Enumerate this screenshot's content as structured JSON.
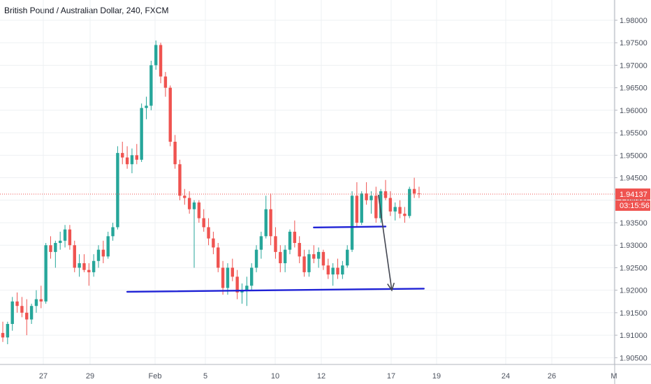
{
  "chart_data": {
    "type": "candlestick",
    "title": "British Pound / Australian Dollar, 240, FXCM",
    "ylim": [
      1.9035,
      1.9845
    ],
    "grid": true,
    "y_ticks": [
      "1.98000",
      "1.97500",
      "1.97000",
      "1.96500",
      "1.96000",
      "1.95500",
      "1.95000",
      "1.94500",
      "1.94000",
      "1.93500",
      "1.93000",
      "1.92500",
      "1.92000",
      "1.91500",
      "1.91000",
      "1.90500"
    ],
    "x_ticks": [
      "27",
      "29",
      "Feb",
      "5",
      "10",
      "12",
      "17",
      "19",
      "24",
      "26",
      "M"
    ],
    "last_price": "1.94137",
    "countdown": "03:15:56",
    "colors": {
      "up": "#26a69a",
      "down": "#ef5350",
      "trendline": "#1f22d6",
      "arrow": "#434651",
      "price_line": "#ef5350",
      "grid": "#eef0f3"
    },
    "candles": [
      [
        1.9105,
        1.913,
        1.9085,
        1.9095
      ],
      [
        1.9095,
        1.913,
        1.908,
        1.9125
      ],
      [
        1.9125,
        1.9185,
        1.911,
        1.9175
      ],
      [
        1.9175,
        1.9195,
        1.915,
        1.9165
      ],
      [
        1.9165,
        1.9185,
        1.914,
        1.915
      ],
      [
        1.915,
        1.918,
        1.91,
        1.9135
      ],
      [
        1.9135,
        1.917,
        1.9125,
        1.9165
      ],
      [
        1.9165,
        1.92,
        1.915,
        1.918
      ],
      [
        1.918,
        1.921,
        1.916,
        1.9175
      ],
      [
        1.9175,
        1.9305,
        1.917,
        1.93
      ],
      [
        1.93,
        1.932,
        1.927,
        1.9285
      ],
      [
        1.9285,
        1.931,
        1.925,
        1.9305
      ],
      [
        1.9305,
        1.933,
        1.929,
        1.931
      ],
      [
        1.931,
        1.9345,
        1.9295,
        1.9335
      ],
      [
        1.9335,
        1.9345,
        1.929,
        1.93
      ],
      [
        1.93,
        1.931,
        1.924,
        1.925
      ],
      [
        1.925,
        1.928,
        1.923,
        1.926
      ],
      [
        1.926,
        1.928,
        1.924,
        1.9245
      ],
      [
        1.9245,
        1.926,
        1.921,
        1.924
      ],
      [
        1.924,
        1.928,
        1.923,
        1.9265
      ],
      [
        1.9265,
        1.93,
        1.925,
        1.929
      ],
      [
        1.929,
        1.931,
        1.926,
        1.9275
      ],
      [
        1.9275,
        1.933,
        1.927,
        1.932
      ],
      [
        1.932,
        1.935,
        1.931,
        1.934
      ],
      [
        1.934,
        1.952,
        1.9335,
        1.9505
      ],
      [
        1.9505,
        1.953,
        1.948,
        1.9495
      ],
      [
        1.9495,
        1.952,
        1.947,
        1.948
      ],
      [
        1.948,
        1.9515,
        1.946,
        1.95
      ],
      [
        1.95,
        1.9525,
        1.948,
        1.949
      ],
      [
        1.949,
        1.9615,
        1.9485,
        1.9605
      ],
      [
        1.9605,
        1.963,
        1.958,
        1.961
      ],
      [
        1.961,
        1.971,
        1.96,
        1.97
      ],
      [
        1.97,
        1.9755,
        1.969,
        1.9745
      ],
      [
        1.9745,
        1.975,
        1.966,
        1.9675
      ],
      [
        1.9675,
        1.9685,
        1.963,
        1.965
      ],
      [
        1.965,
        1.9655,
        1.952,
        1.953
      ],
      [
        1.953,
        1.9545,
        1.947,
        1.948
      ],
      [
        1.948,
        1.949,
        1.94,
        1.941
      ],
      [
        1.941,
        1.9425,
        1.939,
        1.9405
      ],
      [
        1.9405,
        1.942,
        1.937,
        1.938
      ],
      [
        1.938,
        1.94,
        1.925,
        1.9395
      ],
      [
        1.9395,
        1.94,
        1.935,
        1.936
      ],
      [
        1.936,
        1.938,
        1.933,
        1.934
      ],
      [
        1.934,
        1.936,
        1.93,
        1.9315
      ],
      [
        1.9315,
        1.933,
        1.928,
        1.9295
      ],
      [
        1.9295,
        1.9305,
        1.924,
        1.925
      ],
      [
        1.925,
        1.9265,
        1.919,
        1.9205
      ],
      [
        1.9205,
        1.926,
        1.919,
        1.925
      ],
      [
        1.925,
        1.927,
        1.922,
        1.923
      ],
      [
        1.923,
        1.9245,
        1.918,
        1.9195
      ],
      [
        1.9195,
        1.9215,
        1.917,
        1.92
      ],
      [
        1.92,
        1.923,
        1.9165,
        1.921
      ],
      [
        1.921,
        1.926,
        1.92,
        1.925
      ],
      [
        1.925,
        1.93,
        1.924,
        1.929
      ],
      [
        1.929,
        1.933,
        1.927,
        1.932
      ],
      [
        1.932,
        1.941,
        1.9315,
        1.938
      ],
      [
        1.938,
        1.9415,
        1.93,
        1.932
      ],
      [
        1.932,
        1.934,
        1.927,
        1.9285
      ],
      [
        1.9285,
        1.93,
        1.924,
        1.926
      ],
      [
        1.926,
        1.93,
        1.924,
        1.929
      ],
      [
        1.929,
        1.9335,
        1.928,
        1.933
      ],
      [
        1.933,
        1.9355,
        1.9295,
        1.9305
      ],
      [
        1.9305,
        1.932,
        1.926,
        1.9275
      ],
      [
        1.9275,
        1.929,
        1.923,
        1.924
      ],
      [
        1.924,
        1.929,
        1.923,
        1.928
      ],
      [
        1.928,
        1.93,
        1.926,
        1.927
      ],
      [
        1.927,
        1.9295,
        1.925,
        1.9285
      ],
      [
        1.9285,
        1.929,
        1.9245,
        1.9255
      ],
      [
        1.9255,
        1.927,
        1.9225,
        1.9235
      ],
      [
        1.9235,
        1.926,
        1.921,
        1.925
      ],
      [
        1.925,
        1.927,
        1.9225,
        1.9235
      ],
      [
        1.9235,
        1.9265,
        1.9225,
        1.9255
      ],
      [
        1.9255,
        1.93,
        1.925,
        1.929
      ],
      [
        1.929,
        1.942,
        1.9285,
        1.941
      ],
      [
        1.941,
        1.944,
        1.934,
        1.935
      ],
      [
        1.935,
        1.942,
        1.9345,
        1.9415
      ],
      [
        1.9415,
        1.944,
        1.939,
        1.94
      ],
      [
        1.94,
        1.942,
        1.937,
        1.941
      ],
      [
        1.941,
        1.943,
        1.935,
        1.936
      ],
      [
        1.936,
        1.9425,
        1.935,
        1.942
      ],
      [
        1.942,
        1.9445,
        1.94,
        1.9405
      ],
      [
        1.9405,
        1.942,
        1.9365,
        1.9375
      ],
      [
        1.9375,
        1.9395,
        1.9355,
        1.9385
      ],
      [
        1.9385,
        1.94,
        1.936,
        1.937
      ],
      [
        1.937,
        1.9385,
        1.935,
        1.9365
      ],
      [
        1.9365,
        1.943,
        1.936,
        1.9425
      ],
      [
        1.9425,
        1.945,
        1.9405,
        1.9415
      ],
      [
        1.9415,
        1.943,
        1.9405,
        1.94137
      ]
    ],
    "trendlines": [
      {
        "x1": 26.0,
        "y1": 1.91965,
        "x2": 88.0,
        "y2": 1.92035,
        "color": "#1f22d6"
      },
      {
        "x1": 65.0,
        "y1": 1.93395,
        "x2": 80.0,
        "y2": 1.93415,
        "color": "#1f22d6"
      }
    ],
    "arrow": {
      "x1": 78.5,
      "y1": 1.9412,
      "x2": 81.3,
      "y2": 1.92
    }
  }
}
